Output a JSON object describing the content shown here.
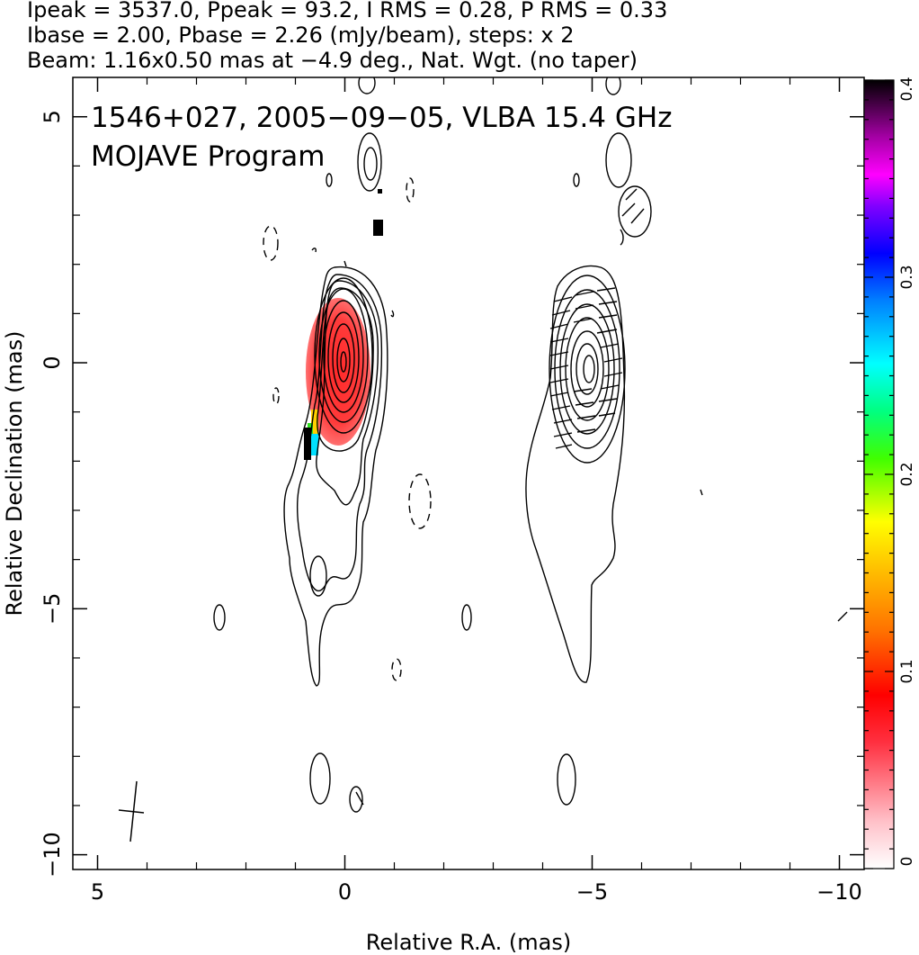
{
  "header": {
    "line1": "Ipeak = 3537.0, Ppeak = 93.2, I RMS = 0.28, P RMS = 0.33",
    "line2": "Ibase = 2.00, Pbase = 2.26 (mJy/beam), steps: x 2",
    "line3": "Beam: 1.16x0.50 mas at −4.9 deg., Nat. Wgt. (no taper)"
  },
  "annotation": {
    "line1": "1546+027, 2005−09−05, VLBA 15.4 GHz",
    "line2": "MOJAVE Program"
  },
  "chart_data": [
    {
      "type": "contour",
      "panel": "Stokes I contours with fractional polarization colour and EVPA ticks",
      "xlabel": "Relative R.A. (mas)",
      "ylabel": "Relative Declination (mas)",
      "xlim": [
        5.5,
        -10.5
      ],
      "ylim": [
        -10.3,
        5.8
      ],
      "x_tick_labels": [
        "5",
        "0",
        "−5",
        "−10"
      ],
      "x_ticks": [
        5,
        0,
        -5,
        -10
      ],
      "y_tick_labels": [
        "5",
        "0",
        "−5",
        "−10"
      ],
      "y_ticks": [
        5,
        0,
        -5,
        -10
      ],
      "grid": false,
      "beam": {
        "ra": 4.3,
        "dec": -9.2,
        "major_mas": 1.16,
        "minor_mas": 0.5,
        "pa_deg": -4.9
      },
      "core": {
        "ra": 0.0,
        "dec": 0.0
      },
      "polarized_peak": {
        "ra": -4.9,
        "dec": -0.2
      },
      "colorbar": {
        "quantity": "fractional polarization",
        "range": [
          0,
          0.4
        ],
        "tick_labels": [
          "0",
          "0.1",
          "0.2",
          "0.3",
          "0.4"
        ],
        "ticks": [
          0,
          0.1,
          0.2,
          0.3,
          0.4
        ]
      }
    }
  ],
  "colors": {
    "contour": "#000000",
    "pol_color_red": "#ff1010",
    "pol_color_pink": "#ff6080",
    "colorbar_stops": [
      "#ffffff",
      "#ff8080",
      "#ff0000",
      "#ff8800",
      "#ffff00",
      "#00ff00",
      "#00ffff",
      "#0000ff",
      "#ff00ff",
      "#000000"
    ]
  }
}
